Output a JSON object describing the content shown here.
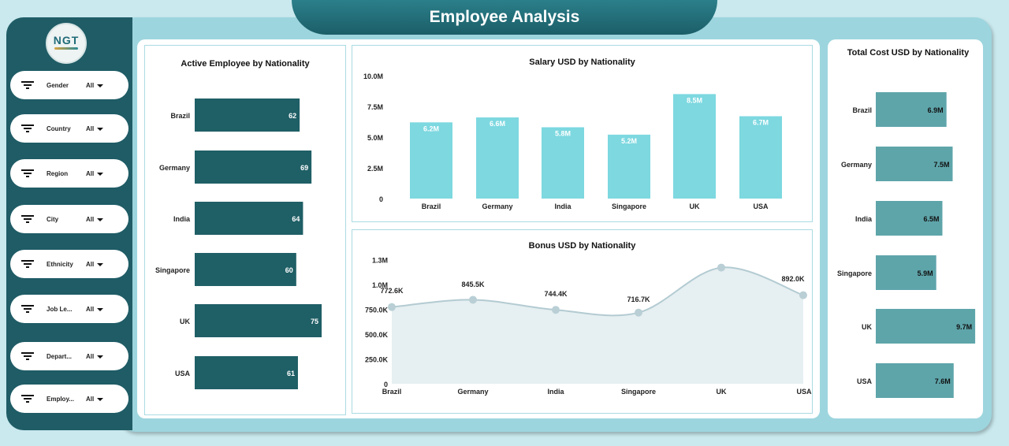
{
  "header": {
    "title": "Employee Analysis"
  },
  "logo": {
    "text": "NGT"
  },
  "filters": [
    {
      "label": "Gender",
      "value": "All"
    },
    {
      "label": "Country",
      "value": "All"
    },
    {
      "label": "Region",
      "value": "All"
    },
    {
      "label": "City",
      "value": "All"
    },
    {
      "label": "Ethnicity",
      "value": "All"
    },
    {
      "label": "Job Le...",
      "value": "All"
    },
    {
      "label": "Depart...",
      "value": "All"
    },
    {
      "label": "Employ...",
      "value": "All"
    }
  ],
  "colors": {
    "sidebar": "#1f5c66",
    "active_bar": "#1f5f66",
    "salary_bar": "#7dd8e0",
    "cost_bar": "#5ea5aa",
    "bonus_area": "#e6eff1",
    "bonus_line": "#b3cbd2"
  },
  "chart_data": [
    {
      "type": "bar",
      "orientation": "horizontal",
      "title": "Active Employee by Nationality",
      "categories": [
        "Brazil",
        "Germany",
        "India",
        "Singapore",
        "UK",
        "USA"
      ],
      "values": [
        62,
        69,
        64,
        60,
        75,
        61
      ],
      "labels": [
        "62",
        "69",
        "64",
        "60",
        "75",
        "61"
      ]
    },
    {
      "type": "bar",
      "title": "Salary USD by Nationality",
      "categories": [
        "Brazil",
        "Germany",
        "India",
        "Singapore",
        "UK",
        "USA"
      ],
      "values": [
        6.2,
        6.6,
        5.8,
        5.2,
        8.5,
        6.7
      ],
      "unit": "M",
      "labels": [
        "6.2M",
        "6.6M",
        "5.8M",
        "5.2M",
        "8.5M",
        "6.7M"
      ],
      "ylim": [
        0,
        10
      ],
      "yticks": [
        "0",
        "2.5M",
        "5.0M",
        "7.5M",
        "10.0M"
      ]
    },
    {
      "type": "area",
      "title": "Bonus USD by Nationality",
      "categories": [
        "Brazil",
        "Germany",
        "India",
        "Singapore",
        "UK",
        "USA"
      ],
      "values": [
        772.6,
        845.5,
        744.4,
        716.7,
        1170,
        892.0
      ],
      "unit": "K",
      "labels": [
        "772.6K",
        "845.5K",
        "744.4K",
        "716.7K",
        "",
        "892.0K"
      ],
      "ylim": [
        0,
        1250
      ],
      "yticks": [
        "0",
        "250.0K",
        "500.0K",
        "750.0K",
        "1.0M",
        "1.3M"
      ]
    },
    {
      "type": "bar",
      "orientation": "horizontal",
      "title": "Total Cost USD by Nationality",
      "categories": [
        "Brazil",
        "Germany",
        "India",
        "Singapore",
        "UK",
        "USA"
      ],
      "values": [
        6.9,
        7.5,
        6.5,
        5.9,
        9.7,
        7.6
      ],
      "unit": "M",
      "labels": [
        "6.9M",
        "7.5M",
        "6.5M",
        "5.9M",
        "9.7M",
        "7.6M"
      ]
    }
  ]
}
